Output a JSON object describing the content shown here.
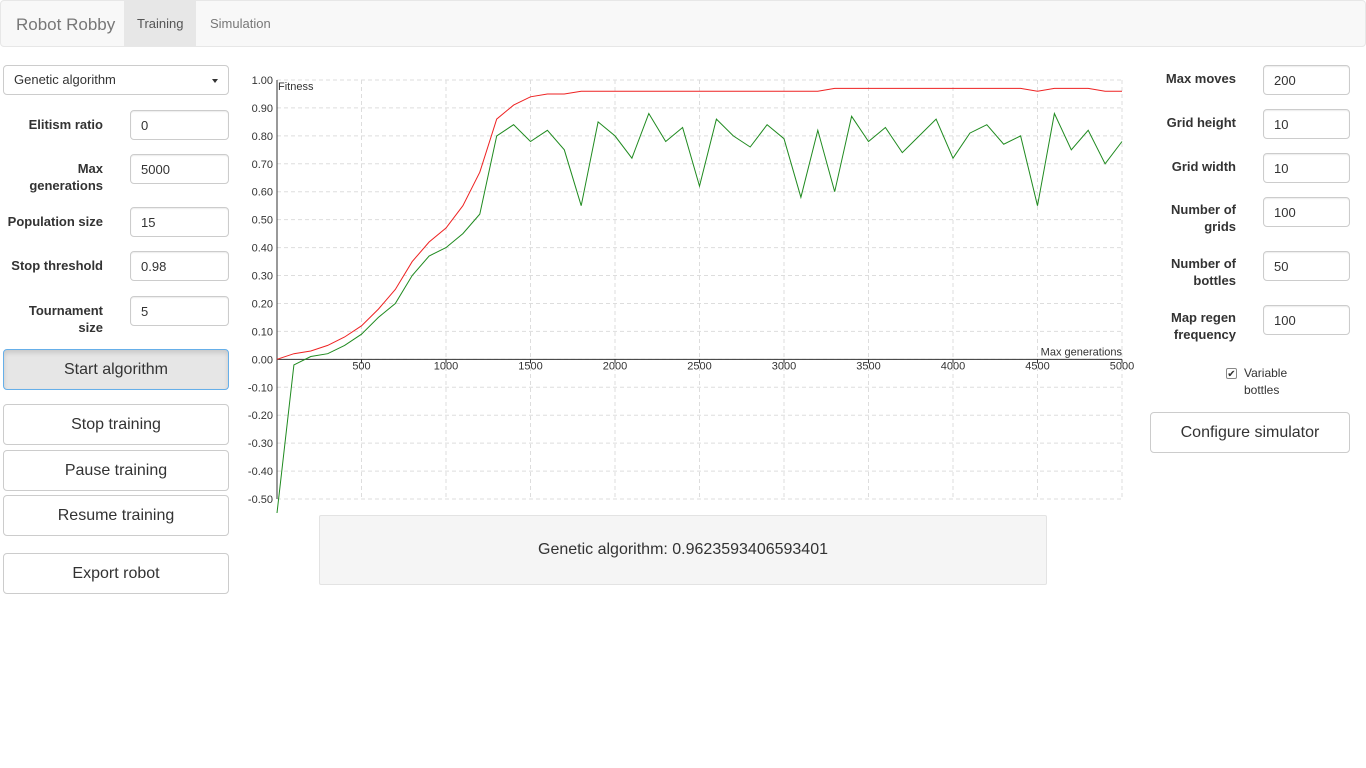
{
  "nav": {
    "brand": "Robot Robby",
    "tabs": [
      "Training",
      "Simulation"
    ]
  },
  "left_panel": {
    "algorithm_select": "Genetic algorithm",
    "fields": [
      {
        "label": "Elitism ratio",
        "value": "0"
      },
      {
        "label": "Max generations",
        "value": "5000"
      },
      {
        "label": "Population size",
        "value": "15"
      },
      {
        "label": "Stop threshold",
        "value": "0.98"
      },
      {
        "label": "Tournament size",
        "value": "5"
      }
    ],
    "buttons": [
      "Start algorithm",
      "Stop training",
      "Pause training",
      "Resume training",
      "Export robot"
    ]
  },
  "right_panel": {
    "fields": [
      {
        "label": "Max moves",
        "value": "200"
      },
      {
        "label": "Grid height",
        "value": "10"
      },
      {
        "label": "Grid width",
        "value": "10"
      },
      {
        "label": "Number of grids",
        "value": "100"
      },
      {
        "label": "Number of bottles",
        "value": "50"
      },
      {
        "label": "Map regen frequency",
        "value": "100"
      }
    ],
    "checkbox": {
      "label": "Variable bottles",
      "checked": true
    },
    "button": "Configure simulator"
  },
  "chart_data": {
    "type": "line",
    "y_label": "Fitness",
    "x_label": "Max generations",
    "x": [
      0,
      100,
      200,
      300,
      400,
      500,
      600,
      700,
      800,
      900,
      1000,
      1100,
      1200,
      1300,
      1400,
      1500,
      1600,
      1700,
      1800,
      1900,
      2000,
      2100,
      2200,
      2300,
      2400,
      2500,
      2600,
      2700,
      2800,
      2900,
      3000,
      3100,
      3200,
      3300,
      3400,
      3500,
      3600,
      3700,
      3800,
      3900,
      4000,
      4100,
      4200,
      4300,
      4400,
      4500,
      4600,
      4700,
      4800,
      4900,
      5000
    ],
    "series": [
      {
        "color": "#ee2222",
        "values": [
          0.0,
          0.02,
          0.03,
          0.05,
          0.08,
          0.12,
          0.18,
          0.25,
          0.35,
          0.42,
          0.47,
          0.55,
          0.67,
          0.86,
          0.91,
          0.94,
          0.95,
          0.95,
          0.96,
          0.96,
          0.96,
          0.96,
          0.96,
          0.96,
          0.96,
          0.96,
          0.96,
          0.96,
          0.96,
          0.96,
          0.96,
          0.96,
          0.96,
          0.97,
          0.97,
          0.97,
          0.97,
          0.97,
          0.97,
          0.97,
          0.97,
          0.97,
          0.97,
          0.97,
          0.97,
          0.96,
          0.97,
          0.97,
          0.97,
          0.96,
          0.96
        ]
      },
      {
        "color": "#1f8a1f",
        "values": [
          -0.55,
          -0.02,
          0.01,
          0.02,
          0.05,
          0.09,
          0.15,
          0.2,
          0.3,
          0.37,
          0.4,
          0.45,
          0.52,
          0.8,
          0.84,
          0.78,
          0.82,
          0.75,
          0.55,
          0.85,
          0.8,
          0.72,
          0.88,
          0.78,
          0.83,
          0.62,
          0.86,
          0.8,
          0.76,
          0.84,
          0.79,
          0.58,
          0.82,
          0.6,
          0.87,
          0.78,
          0.83,
          0.74,
          0.8,
          0.86,
          0.72,
          0.81,
          0.84,
          0.77,
          0.8,
          0.55,
          0.88,
          0.75,
          0.82,
          0.7,
          0.78
        ]
      }
    ],
    "xlim": [
      0,
      5000
    ],
    "ylim": [
      -0.5,
      1.0
    ],
    "xticks": [
      500,
      1000,
      1500,
      2000,
      2500,
      3000,
      3500,
      4000,
      4500,
      5000
    ],
    "yticks": [
      {
        "value": -0.5,
        "label": "-0.50"
      },
      {
        "value": -0.4,
        "label": "-0.40"
      },
      {
        "value": -0.3,
        "label": "-0.30"
      },
      {
        "value": -0.2,
        "label": "-0.20"
      },
      {
        "value": -0.1,
        "label": "-0.10"
      },
      {
        "value": 0,
        "label": "0.00"
      },
      {
        "value": 0.1,
        "label": "0.10"
      },
      {
        "value": 0.2,
        "label": "0.20"
      },
      {
        "value": 0.3,
        "label": "0.30"
      },
      {
        "value": 0.4,
        "label": "0.40"
      },
      {
        "value": 0.5,
        "label": "0.50"
      },
      {
        "value": 0.6,
        "label": "0.60"
      },
      {
        "value": 0.7,
        "label": "0.70"
      },
      {
        "value": 0.8,
        "label": "0.80"
      },
      {
        "value": 0.9,
        "label": "0.90"
      },
      {
        "value": 1.0,
        "label": "1.00"
      }
    ],
    "grid": true
  },
  "status": "Genetic algorithm: 0.9623593406593401"
}
